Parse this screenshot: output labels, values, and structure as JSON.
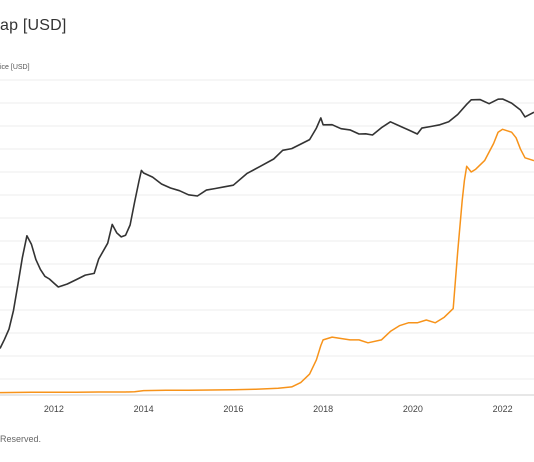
{
  "header": {
    "title": "ap [USD]"
  },
  "footer": {
    "text": "Reserved."
  },
  "chart_data": {
    "type": "line",
    "title": "ap [USD]",
    "xlabel": "",
    "ylabel": "",
    "xlim": [
      2010.8,
      2022.7
    ],
    "ylim": [
      0,
      1
    ],
    "grid": true,
    "x_ticks": [
      "2012",
      "2014",
      "2016",
      "2018",
      "2020",
      "2022"
    ],
    "series": [
      {
        "name": "ice [USD]",
        "color": "#333333",
        "x": [
          2010.8,
          2010.9,
          2011.0,
          2011.1,
          2011.2,
          2011.3,
          2011.4,
          2011.5,
          2011.6,
          2011.7,
          2011.8,
          2011.9,
          2012.0,
          2012.1,
          2012.3,
          2012.5,
          2012.7,
          2012.9,
          2013.0,
          2013.2,
          2013.3,
          2013.4,
          2013.5,
          2013.6,
          2013.7,
          2013.8,
          2013.9,
          2013.95,
          2014.0,
          2014.2,
          2014.4,
          2014.6,
          2014.8,
          2015.0,
          2015.2,
          2015.4,
          2015.6,
          2015.8,
          2016.0,
          2016.3,
          2016.6,
          2016.9,
          2017.1,
          2017.3,
          2017.5,
          2017.7,
          2017.85,
          2017.95,
          2018.0,
          2018.2,
          2018.4,
          2018.6,
          2018.8,
          2018.95,
          2019.1,
          2019.3,
          2019.5,
          2019.7,
          2019.9,
          2020.1,
          2020.2,
          2020.4,
          2020.6,
          2020.8,
          2021.0,
          2021.2,
          2021.3,
          2021.5,
          2021.7,
          2021.9,
          2022.0,
          2022.2,
          2022.4,
          2022.5,
          2022.7
        ],
        "values": [
          0.16,
          0.19,
          0.23,
          0.3,
          0.38,
          0.48,
          0.56,
          0.52,
          0.47,
          0.44,
          0.42,
          0.4,
          0.39,
          0.38,
          0.38,
          0.4,
          0.42,
          0.43,
          0.47,
          0.53,
          0.6,
          0.56,
          0.55,
          0.56,
          0.6,
          0.67,
          0.75,
          0.79,
          0.77,
          0.76,
          0.74,
          0.73,
          0.71,
          0.7,
          0.7,
          0.71,
          0.72,
          0.73,
          0.74,
          0.77,
          0.8,
          0.83,
          0.85,
          0.86,
          0.88,
          0.9,
          0.93,
          0.97,
          0.95,
          0.94,
          0.93,
          0.93,
          0.92,
          0.91,
          0.91,
          0.94,
          0.95,
          0.94,
          0.93,
          0.92,
          0.93,
          0.94,
          0.95,
          0.95,
          0.98,
          1.02,
          1.04,
          1.03,
          1.02,
          1.04,
          1.03,
          1.02,
          1.0,
          0.98,
          0.99
        ]
      },
      {
        "name": "",
        "color": "#f7931a",
        "x": [
          2010.8,
          2011.5,
          2012.0,
          2012.5,
          2013.0,
          2013.6,
          2013.8,
          2014.0,
          2014.5,
          2015.0,
          2015.5,
          2016.0,
          2016.5,
          2017.0,
          2017.3,
          2017.5,
          2017.7,
          2017.85,
          2017.95,
          2018.0,
          2018.2,
          2018.4,
          2018.6,
          2018.8,
          2019.0,
          2019.3,
          2019.5,
          2019.7,
          2019.9,
          2020.1,
          2020.3,
          2020.5,
          2020.7,
          2020.9,
          2021.0,
          2021.1,
          2021.15,
          2021.2,
          2021.3,
          2021.4,
          2021.6,
          2021.8,
          2021.9,
          2022.0,
          2022.2,
          2022.3,
          2022.4,
          2022.5,
          2022.7
        ],
        "values": [
          0.005,
          0.006,
          0.006,
          0.006,
          0.007,
          0.007,
          0.008,
          0.012,
          0.013,
          0.013,
          0.014,
          0.015,
          0.017,
          0.02,
          0.025,
          0.04,
          0.07,
          0.12,
          0.17,
          0.19,
          0.2,
          0.195,
          0.19,
          0.19,
          0.18,
          0.19,
          0.22,
          0.24,
          0.25,
          0.25,
          0.26,
          0.25,
          0.27,
          0.3,
          0.5,
          0.68,
          0.75,
          0.8,
          0.78,
          0.79,
          0.82,
          0.88,
          0.92,
          0.93,
          0.92,
          0.9,
          0.86,
          0.83,
          0.82
        ]
      }
    ]
  }
}
